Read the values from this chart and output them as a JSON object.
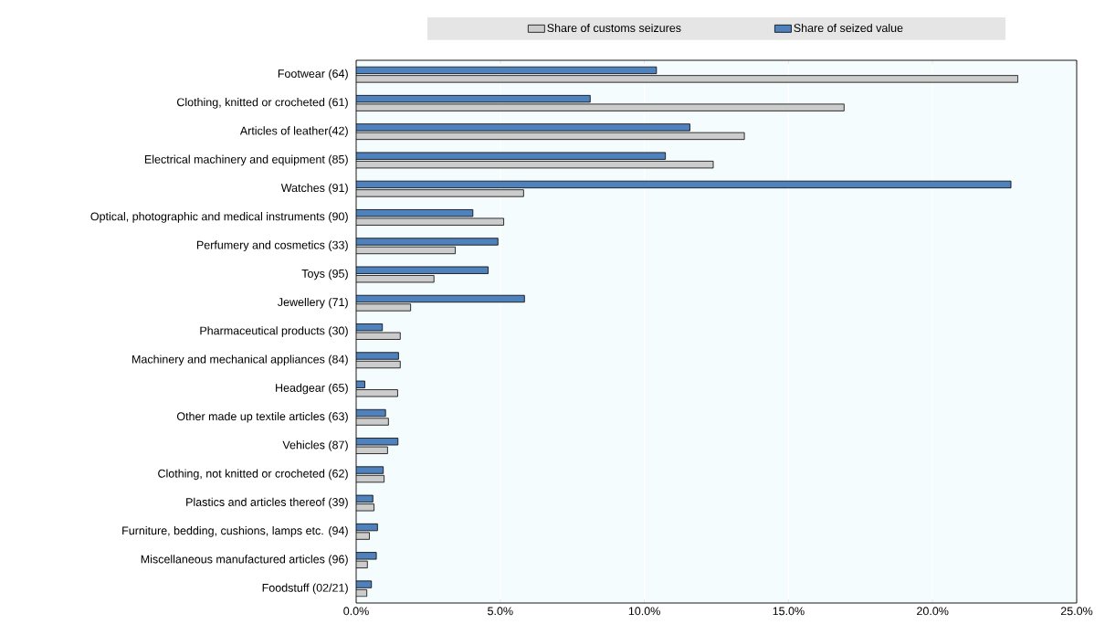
{
  "chart_data": {
    "type": "bar",
    "orientation": "horizontal",
    "categories": [
      "Footwear (64)",
      "Clothing, knitted or crocheted (61)",
      "Articles of leather(42)",
      "Electrical machinery and equipment (85)",
      "Watches (91)",
      "Optical, photographic and medical instruments (90)",
      "Perfumery and cosmetics (33)",
      "Toys (95)",
      "Jewellery (71)",
      "Pharmaceutical products (30)",
      "Machinery and mechanical appliances (84)",
      "Headgear (65)",
      "Other made up textile articles (63)",
      "Vehicles (87)",
      "Clothing, not knitted or crocheted (62)",
      "Plastics and articles thereof (39)",
      "Furniture, bedding, cushions, lamps etc. (94)",
      "Miscellaneous manufactured articles (96)",
      "Foodstuff (02/21)"
    ],
    "series": [
      {
        "name": "Share of customs seizures",
        "color": "#cccccc",
        "values": [
          22.96,
          16.93,
          13.47,
          12.39,
          5.81,
          5.12,
          3.44,
          2.7,
          1.89,
          1.53,
          1.53,
          1.44,
          1.12,
          1.09,
          0.97,
          0.62,
          0.46,
          0.39,
          0.37
        ]
      },
      {
        "name": "Share of seized value",
        "color": "#4f81bd",
        "values": [
          10.42,
          8.12,
          11.58,
          10.73,
          22.72,
          4.05,
          4.92,
          4.58,
          5.84,
          0.91,
          1.47,
          0.3,
          1.02,
          1.45,
          0.94,
          0.58,
          0.74,
          0.7,
          0.53
        ]
      }
    ],
    "xlim": [
      0,
      25
    ],
    "xticks": [
      {
        "value": 0,
        "label": "0.0%"
      },
      {
        "value": 5,
        "label": "5.0%"
      },
      {
        "value": 10,
        "label": "10.0%"
      },
      {
        "value": 15,
        "label": "15.0%"
      },
      {
        "value": 20,
        "label": "20.0%"
      },
      {
        "value": 25,
        "label": "25.0%"
      }
    ],
    "grid": "x",
    "legend": "top"
  }
}
